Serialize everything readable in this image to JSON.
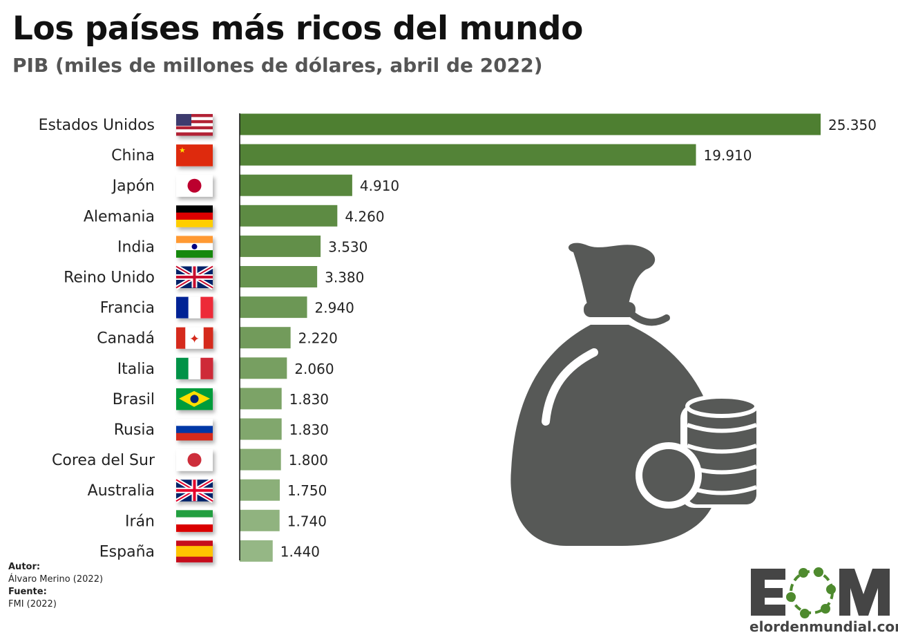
{
  "header": {
    "title": "Los países más ricos del mundo",
    "subtitle": "PIB (miles de millones de dólares, abril de 2022)"
  },
  "chart_data": {
    "type": "bar",
    "orientation": "horizontal",
    "title": "Los países más ricos del mundo",
    "subtitle": "PIB (miles de millones de dólares, abril de 2022)",
    "categories": [
      "Estados Unidos",
      "China",
      "Japón",
      "Alemania",
      "India",
      "Reino Unido",
      "Francia",
      "Canadá",
      "Italia",
      "Brasil",
      "Rusia",
      "Corea del Sur",
      "Australia",
      "Irán",
      "España"
    ],
    "values": [
      25350,
      19910,
      4910,
      4260,
      3530,
      3380,
      2940,
      2220,
      2060,
      1830,
      1830,
      1800,
      1750,
      1740,
      1440
    ],
    "value_labels": [
      "25.350",
      "19.910",
      "4.910",
      "4.260",
      "3.530",
      "3.380",
      "2.940",
      "2.220",
      "2.060",
      "1.830",
      "1.830",
      "1.800",
      "1.750",
      "1.740",
      "1.440"
    ],
    "xlim": [
      0,
      25350
    ],
    "grid": false,
    "bar_color_start": "#4e7f31",
    "bar_color_end": "#95b785"
  },
  "flags": [
    {
      "dir": "h",
      "colors": [
        "#b22234",
        "#ffffff",
        "#b22234",
        "#ffffff",
        "#b22234",
        "#ffffff",
        "#b22234"
      ],
      "canton": "#3c3b6e"
    },
    {
      "dir": "h",
      "colors": [
        "#de2910"
      ],
      "star": "#ffde00"
    },
    {
      "dir": "h",
      "colors": [
        "#ffffff"
      ],
      "disc": "#bc002d"
    },
    {
      "dir": "h",
      "colors": [
        "#000000",
        "#dd0000",
        "#ffce00"
      ]
    },
    {
      "dir": "h",
      "colors": [
        "#ff9933",
        "#ffffff",
        "#138808"
      ],
      "disc": "#000080"
    },
    {
      "dir": "h",
      "colors": [
        "#012169"
      ],
      "cross": "#c8102e"
    },
    {
      "dir": "v",
      "colors": [
        "#002395",
        "#ffffff",
        "#ed2939"
      ]
    },
    {
      "dir": "v",
      "colors": [
        "#d52b1e",
        "#ffffff",
        "#ffffff",
        "#d52b1e"
      ],
      "leaf": "#d52b1e"
    },
    {
      "dir": "v",
      "colors": [
        "#009246",
        "#ffffff",
        "#ce2b37"
      ]
    },
    {
      "dir": "h",
      "colors": [
        "#009c3b"
      ],
      "diamond": "#ffdf00",
      "disc": "#002776"
    },
    {
      "dir": "h",
      "colors": [
        "#ffffff",
        "#0039a6",
        "#d52b1e"
      ]
    },
    {
      "dir": "h",
      "colors": [
        "#ffffff"
      ],
      "disc": "#cd2e3a"
    },
    {
      "dir": "h",
      "colors": [
        "#012169"
      ],
      "cross": "#e4002b"
    },
    {
      "dir": "h",
      "colors": [
        "#239f40",
        "#ffffff",
        "#da0000"
      ]
    },
    {
      "dir": "h",
      "colors": [
        "#c60b1e",
        "#ffc400",
        "#ffc400",
        "#c60b1e"
      ]
    }
  ],
  "icon": {
    "name": "money-bag-coins-icon",
    "color": "#575957"
  },
  "credits": {
    "author_label": "Autor:",
    "author": "Álvaro Merino (2022)",
    "source_label": "Fuente:",
    "source": "FMI (2022)"
  },
  "logo": {
    "letters": "EOM",
    "url": "elordenmundial.com",
    "dark": "#454545",
    "green": "#4e8a2e"
  }
}
